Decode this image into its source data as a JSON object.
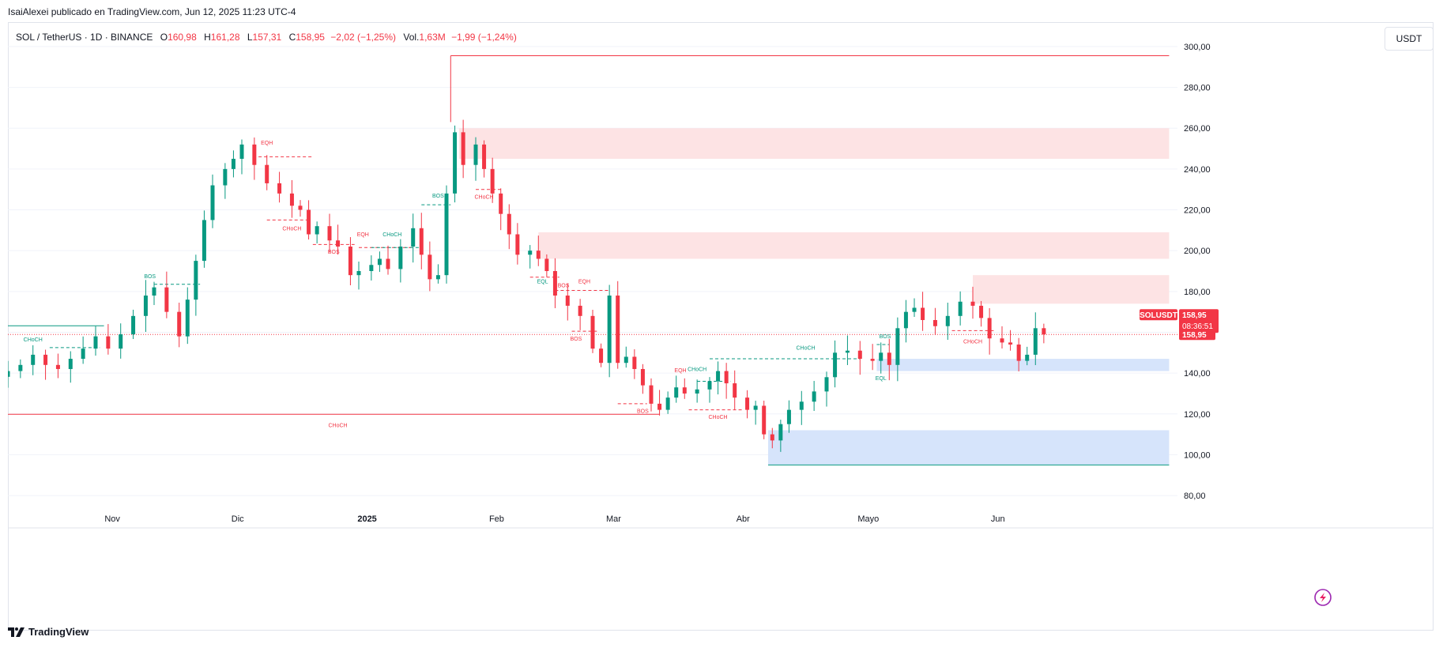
{
  "publisher": "IsaiAlexei publicado en TradingView.com, Jun 12, 2025 11:23 UTC-4",
  "legend": {
    "symbol": "SOL / TetherUS · 1D · BINANCE",
    "o_label": "O",
    "o_value": "160,98",
    "h_label": "H",
    "h_value": "161,28",
    "l_label": "L",
    "l_value": "157,31",
    "c_label": "C",
    "c_value": "158,95",
    "change": "−2,02 (−1,25%)",
    "vol_label": "Vol.",
    "vol_value": "1,63M",
    "vol_change": "−1,99 (−1,24%)"
  },
  "currency_button": "USDT",
  "footer_brand": "TradingView",
  "colors": {
    "up": "#089981",
    "down": "#f23645",
    "supply": "#fde3e4",
    "demand": "#d6e4fb",
    "grid": "#f0f3fa"
  },
  "chart_data": {
    "type": "candlestick",
    "y_ticks": [
      "300,00",
      "280,00",
      "260,00",
      "240,00",
      "220,00",
      "200,00",
      "180,00",
      "160,00",
      "140,00",
      "120,00",
      "100,00",
      "80,00"
    ],
    "y_tick_values": [
      300,
      280,
      260,
      240,
      220,
      200,
      180,
      160,
      140,
      120,
      100,
      80
    ],
    "ylim": [
      75,
      305
    ],
    "x_labels": [
      "Nov",
      "Dic",
      "2025",
      "Feb",
      "Mar",
      "Abr",
      "Mayo",
      "Jun"
    ],
    "x_label_dates": [
      "2024-11-01",
      "2024-12-01",
      "2025-01-01",
      "2025-02-01",
      "2025-03-01",
      "2025-04-01",
      "2025-05-01",
      "2025-06-01"
    ],
    "x_start": "2024-10-07",
    "x_end": "2025-07-14",
    "price_badges": {
      "symbol": "SOLUSDT",
      "price": "158,95",
      "countdown": "08:36:51",
      "last": "158,95",
      "value": 158.95
    },
    "closes": [
      [
        "2024-10-07",
        141
      ],
      [
        "2024-10-10",
        144
      ],
      [
        "2024-10-13",
        149
      ],
      [
        "2024-10-16",
        144
      ],
      [
        "2024-10-19",
        142
      ],
      [
        "2024-10-22",
        147
      ],
      [
        "2024-10-25",
        152
      ],
      [
        "2024-10-28",
        158
      ],
      [
        "2024-10-31",
        152
      ],
      [
        "2024-11-03",
        159
      ],
      [
        "2024-11-06",
        168
      ],
      [
        "2024-11-09",
        178
      ],
      [
        "2024-11-11",
        182
      ],
      [
        "2024-11-14",
        170
      ],
      [
        "2024-11-17",
        158
      ],
      [
        "2024-11-19",
        176
      ],
      [
        "2024-11-21",
        195
      ],
      [
        "2024-11-23",
        215
      ],
      [
        "2024-11-25",
        232
      ],
      [
        "2024-11-28",
        240
      ],
      [
        "2024-11-30",
        245
      ],
      [
        "2024-12-02",
        252
      ],
      [
        "2024-12-05",
        242
      ],
      [
        "2024-12-08",
        233
      ],
      [
        "2024-12-11",
        228
      ],
      [
        "2024-12-14",
        222
      ],
      [
        "2024-12-16",
        220
      ],
      [
        "2024-12-18",
        208
      ],
      [
        "2024-12-20",
        212
      ],
      [
        "2024-12-23",
        205
      ],
      [
        "2024-12-25",
        202
      ],
      [
        "2024-12-28",
        188
      ],
      [
        "2024-12-30",
        190
      ],
      [
        "2025-01-02",
        193
      ],
      [
        "2025-01-04",
        196
      ],
      [
        "2025-01-06",
        191
      ],
      [
        "2025-01-09",
        202
      ],
      [
        "2025-01-12",
        211
      ],
      [
        "2025-01-14",
        198
      ],
      [
        "2025-01-16",
        186
      ],
      [
        "2025-01-18",
        188
      ],
      [
        "2025-01-20",
        228
      ],
      [
        "2025-01-22",
        258
      ],
      [
        "2025-01-24",
        242
      ],
      [
        "2025-01-27",
        252
      ],
      [
        "2025-01-29",
        240
      ],
      [
        "2025-01-31",
        228
      ],
      [
        "2025-02-02",
        218
      ],
      [
        "2025-02-04",
        208
      ],
      [
        "2025-02-06",
        198
      ],
      [
        "2025-02-09",
        200
      ],
      [
        "2025-02-11",
        196
      ],
      [
        "2025-02-13",
        190
      ],
      [
        "2025-02-15",
        178
      ],
      [
        "2025-02-18",
        173
      ],
      [
        "2025-02-21",
        168
      ],
      [
        "2025-02-24",
        152
      ],
      [
        "2025-02-26",
        145
      ],
      [
        "2025-02-28",
        178
      ],
      [
        "2025-03-02",
        145
      ],
      [
        "2025-03-04",
        148
      ],
      [
        "2025-03-06",
        142
      ],
      [
        "2025-03-08",
        134
      ],
      [
        "2025-03-10",
        125
      ],
      [
        "2025-03-12",
        122
      ],
      [
        "2025-03-14",
        128
      ],
      [
        "2025-03-16",
        133
      ],
      [
        "2025-03-18",
        130
      ],
      [
        "2025-03-21",
        132
      ],
      [
        "2025-03-24",
        136
      ],
      [
        "2025-03-26",
        141
      ],
      [
        "2025-03-28",
        135
      ],
      [
        "2025-03-30",
        128
      ],
      [
        "2025-04-02",
        122
      ],
      [
        "2025-04-04",
        124
      ],
      [
        "2025-04-06",
        110
      ],
      [
        "2025-04-08",
        107
      ],
      [
        "2025-04-10",
        115
      ],
      [
        "2025-04-12",
        122
      ],
      [
        "2025-04-15",
        126
      ],
      [
        "2025-04-18",
        131
      ],
      [
        "2025-04-21",
        138
      ],
      [
        "2025-04-23",
        150
      ],
      [
        "2025-04-26",
        151
      ],
      [
        "2025-04-29",
        147
      ],
      [
        "2025-05-02",
        146
      ],
      [
        "2025-05-04",
        150
      ],
      [
        "2025-05-06",
        144
      ],
      [
        "2025-05-08",
        162
      ],
      [
        "2025-05-10",
        170
      ],
      [
        "2025-05-12",
        172
      ],
      [
        "2025-05-14",
        166
      ],
      [
        "2025-05-17",
        163
      ],
      [
        "2025-05-20",
        168
      ],
      [
        "2025-05-23",
        175
      ],
      [
        "2025-05-26",
        173
      ],
      [
        "2025-05-28",
        167
      ],
      [
        "2025-05-30",
        157
      ],
      [
        "2025-06-02",
        155
      ],
      [
        "2025-06-04",
        154
      ],
      [
        "2025-06-06",
        146
      ],
      [
        "2025-06-08",
        149
      ],
      [
        "2025-06-10",
        162
      ],
      [
        "2025-06-12",
        158.95
      ]
    ],
    "zones": [
      {
        "kind": "supply",
        "from": "2025-01-23",
        "to": "2025-07-12",
        "low": 245,
        "high": 260
      },
      {
        "kind": "supply",
        "from": "2025-02-11",
        "to": "2025-07-12",
        "low": 196,
        "high": 209
      },
      {
        "kind": "supply",
        "from": "2025-05-26",
        "to": "2025-07-12",
        "low": 174,
        "high": 188
      },
      {
        "kind": "demand",
        "from": "2025-05-03",
        "to": "2025-07-12",
        "low": 141,
        "high": 147
      },
      {
        "kind": "demand",
        "from": "2025-04-07",
        "to": "2025-07-12",
        "low": 95,
        "high": 112
      }
    ],
    "solid_lines": [
      {
        "kind": "down",
        "from": "2025-01-21",
        "to": "2025-07-12",
        "price": 295.5,
        "anchor_low": 263
      },
      {
        "kind": "down",
        "from": "2024-10-07",
        "to": "2025-03-12",
        "price": 119.8
      },
      {
        "kind": "up",
        "from": "2024-10-07",
        "to": "2024-10-30",
        "price": 163.2
      },
      {
        "kind": "up",
        "from": "2025-04-07",
        "to": "2025-07-12",
        "price": 95
      }
    ],
    "dashed_lines": [
      {
        "kind": "up",
        "from": "2024-10-17",
        "to": "2024-10-29",
        "price": 152.5
      },
      {
        "kind": "up",
        "from": "2024-11-11",
        "to": "2024-11-22",
        "price": 183.5
      },
      {
        "kind": "down",
        "from": "2024-12-06",
        "to": "2024-12-19",
        "price": 246
      },
      {
        "kind": "down",
        "from": "2024-12-08",
        "to": "2024-12-18",
        "price": 215
      },
      {
        "kind": "down",
        "from": "2024-12-19",
        "to": "2024-12-29",
        "price": 203
      },
      {
        "kind": "down",
        "from": "2024-12-30",
        "to": "2025-01-12",
        "price": 201.5
      },
      {
        "kind": "up",
        "from": "2025-01-02",
        "to": "2025-01-14",
        "price": 201.5
      },
      {
        "kind": "up",
        "from": "2025-01-14",
        "to": "2025-01-21",
        "price": 222.5
      },
      {
        "kind": "down",
        "from": "2025-01-27",
        "to": "2025-02-02",
        "price": 230
      },
      {
        "kind": "down",
        "from": "2025-02-09",
        "to": "2025-02-16",
        "price": 187
      },
      {
        "kind": "down",
        "from": "2025-02-15",
        "to": "2025-02-28",
        "price": 180.5
      },
      {
        "kind": "down",
        "from": "2025-02-19",
        "to": "2025-02-25",
        "price": 160.5
      },
      {
        "kind": "down",
        "from": "2025-03-02",
        "to": "2025-03-09",
        "price": 125
      },
      {
        "kind": "down",
        "from": "2025-03-19",
        "to": "2025-04-01",
        "price": 122
      },
      {
        "kind": "up",
        "from": "2025-03-24",
        "to": "2025-04-29",
        "price": 147
      },
      {
        "kind": "up",
        "from": "2025-03-21",
        "to": "2025-03-29",
        "price": 136
      },
      {
        "kind": "up",
        "from": "2025-05-03",
        "to": "2025-05-06",
        "price": 154
      },
      {
        "kind": "down",
        "from": "2025-05-21",
        "to": "2025-05-31",
        "price": 160.8
      }
    ],
    "annotations": [
      {
        "text": "CHoCH",
        "kind": "up",
        "date": "2024-10-13",
        "price": 155.5
      },
      {
        "text": "BOS",
        "kind": "up",
        "date": "2024-11-10",
        "price": 186.5
      },
      {
        "text": "EQH",
        "kind": "down",
        "date": "2024-12-08",
        "price": 252
      },
      {
        "text": "CHoCH",
        "kind": "down",
        "date": "2024-12-14",
        "price": 210
      },
      {
        "text": "BOS",
        "kind": "down",
        "date": "2024-12-24",
        "price": 198.5
      },
      {
        "text": "EQH",
        "kind": "down",
        "date": "2024-12-31",
        "price": 207
      },
      {
        "text": "CHoCH",
        "kind": "up",
        "date": "2025-01-07",
        "price": 207
      },
      {
        "text": "BOS",
        "kind": "up",
        "date": "2025-01-18",
        "price": 226
      },
      {
        "text": "CHoCH",
        "kind": "down",
        "date": "2025-01-29",
        "price": 225.5
      },
      {
        "text": "EQL",
        "kind": "up",
        "date": "2025-02-12",
        "price": 184
      },
      {
        "text": "BOS",
        "kind": "down",
        "date": "2025-02-17",
        "price": 182
      },
      {
        "text": "EQH",
        "kind": "down",
        "date": "2025-02-22",
        "price": 184
      },
      {
        "text": "BOS",
        "kind": "down",
        "date": "2025-02-20",
        "price": 156
      },
      {
        "text": "CHoCH",
        "kind": "down",
        "date": "2024-12-25",
        "price": 113.5
      },
      {
        "text": "BOS",
        "kind": "down",
        "date": "2025-03-08",
        "price": 120.5
      },
      {
        "text": "EQH",
        "kind": "down",
        "date": "2025-03-17",
        "price": 140.5
      },
      {
        "text": "CHoCH",
        "kind": "up",
        "date": "2025-03-21",
        "price": 141
      },
      {
        "text": "CHoCH",
        "kind": "down",
        "date": "2025-03-26",
        "price": 117.5
      },
      {
        "text": "CHoCH",
        "kind": "up",
        "date": "2025-04-16",
        "price": 151.5
      },
      {
        "text": "BOS",
        "kind": "up",
        "date": "2025-05-05",
        "price": 157
      },
      {
        "text": "EQL",
        "kind": "up",
        "date": "2025-05-04",
        "price": 136.5
      },
      {
        "text": "CHoCH",
        "kind": "down",
        "date": "2025-05-26",
        "price": 154.5
      }
    ]
  }
}
